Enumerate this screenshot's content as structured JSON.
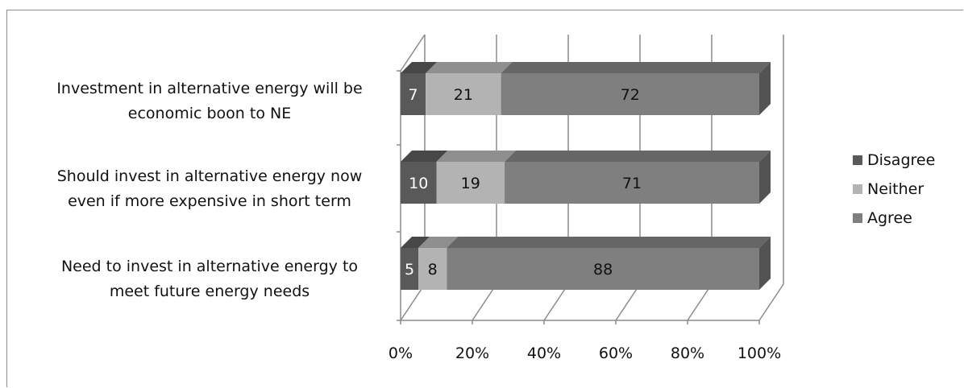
{
  "chart_data": {
    "type": "bar",
    "orientation": "horizontal",
    "stacked": true,
    "percent_stacked": true,
    "three_d": true,
    "title": "",
    "categories": [
      "Need to invest in alternative energy to meet future energy needs",
      "Should invest in alternative energy now even if more expensive in short term",
      "Investment in alternative energy will be economic boon to NE"
    ],
    "series": [
      {
        "name": "Disagree",
        "values": [
          5,
          10,
          7
        ],
        "color": "#595959"
      },
      {
        "name": "Neither",
        "values": [
          8,
          19,
          21
        ],
        "color": "#b3b3b3"
      },
      {
        "name": "Agree",
        "values": [
          88,
          71,
          72
        ],
        "color": "#7f7f7f"
      }
    ],
    "xaxis": {
      "min": 0,
      "max": 100,
      "ticks": [
        "0%",
        "20%",
        "40%",
        "60%",
        "80%",
        "100%"
      ]
    },
    "legend_position": "right",
    "grid": true
  },
  "category_lines": [
    [
      "Need to invest in alternative energy to",
      "meet future energy needs"
    ],
    [
      "Should invest in alternative energy now",
      "even if more expensive in short term"
    ],
    [
      "Investment in alternative energy will be",
      "economic boon to NE"
    ]
  ]
}
